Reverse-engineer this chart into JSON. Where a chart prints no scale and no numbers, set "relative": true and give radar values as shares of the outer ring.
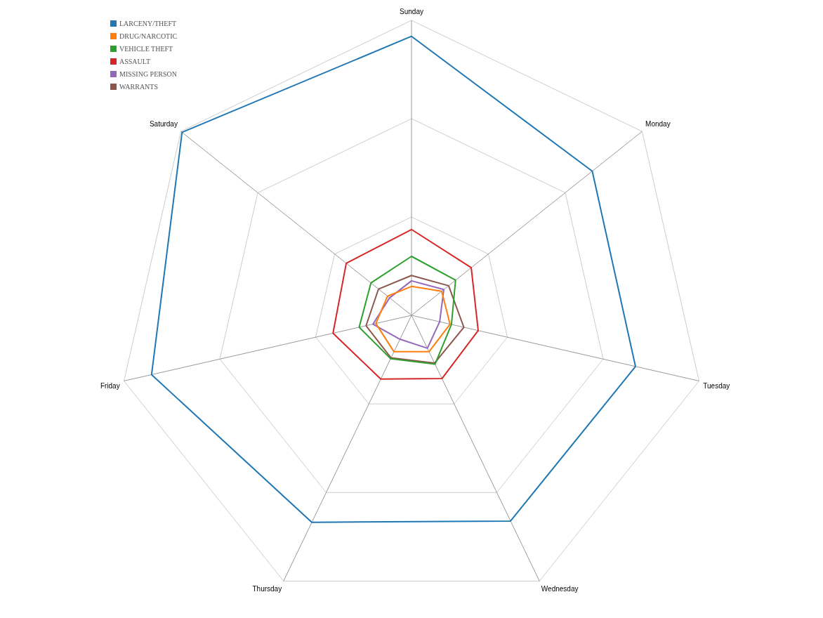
{
  "chart_data": {
    "type": "radar",
    "relative": true,
    "legend": "top left",
    "marker": "none",
    "categories": [
      "Sunday",
      "Monday",
      "Tuesday",
      "Wednesday",
      "Thursday",
      "Friday",
      "Saturday"
    ],
    "series": [
      {
        "name": "LARCENY/THEFT",
        "color": "#1f77b4",
        "values": [
          0.946,
          0.784,
          0.779,
          0.774,
          0.779,
          0.904,
          0.995
        ]
      },
      {
        "name": "DRUG/NARCOTIC",
        "color": "#ff7f0e",
        "values": [
          0.098,
          0.131,
          0.134,
          0.137,
          0.137,
          0.124,
          0.104
        ]
      },
      {
        "name": "VEHICLE THEFT",
        "color": "#2ca02c",
        "values": [
          0.2,
          0.191,
          0.139,
          0.184,
          0.163,
          0.182,
          0.176
        ]
      },
      {
        "name": "ASSAULT",
        "color": "#d62728",
        "values": [
          0.291,
          0.259,
          0.232,
          0.238,
          0.24,
          0.273,
          0.283
        ]
      },
      {
        "name": "MISSING PERSON",
        "color": "#9467bd",
        "values": [
          0.117,
          0.14,
          0.098,
          0.124,
          0.09,
          0.134,
          0.095
        ]
      },
      {
        "name": "WARRANTS",
        "color": "#8c564b",
        "values": [
          0.135,
          0.161,
          0.182,
          0.18,
          0.16,
          0.158,
          0.143
        ]
      }
    ]
  }
}
